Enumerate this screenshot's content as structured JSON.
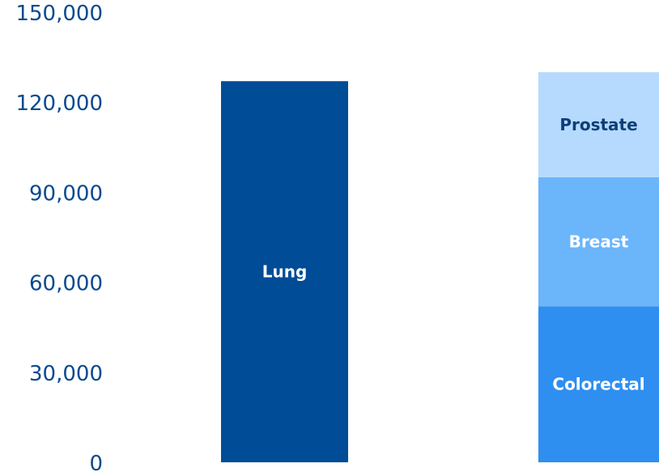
{
  "chart_data": {
    "type": "bar",
    "stacked": true,
    "title": "",
    "xlabel": "",
    "ylabel": "",
    "ylim": [
      0,
      150000
    ],
    "yticks": [
      0,
      30000,
      60000,
      90000,
      120000,
      150000
    ],
    "ytick_labels": [
      "0",
      "30,000",
      "60,000",
      "90,000",
      "120,000",
      "150,000"
    ],
    "grid": false,
    "legend": "none",
    "bars": [
      {
        "segments": [
          {
            "label": "Lung",
            "value": 127000,
            "color": "#004c97",
            "label_color": "#ffffff"
          }
        ]
      },
      {
        "segments": [
          {
            "label": "Colorectal",
            "value": 52000,
            "color": "#2e8ff0",
            "label_color": "#ffffff"
          },
          {
            "label": "Breast",
            "value": 43000,
            "color": "#6bb5fb",
            "label_color": "#ffffff"
          },
          {
            "label": "Prostate",
            "value": 35000,
            "color": "#b6dafd",
            "label_color": "#0d3f78"
          }
        ]
      }
    ]
  }
}
